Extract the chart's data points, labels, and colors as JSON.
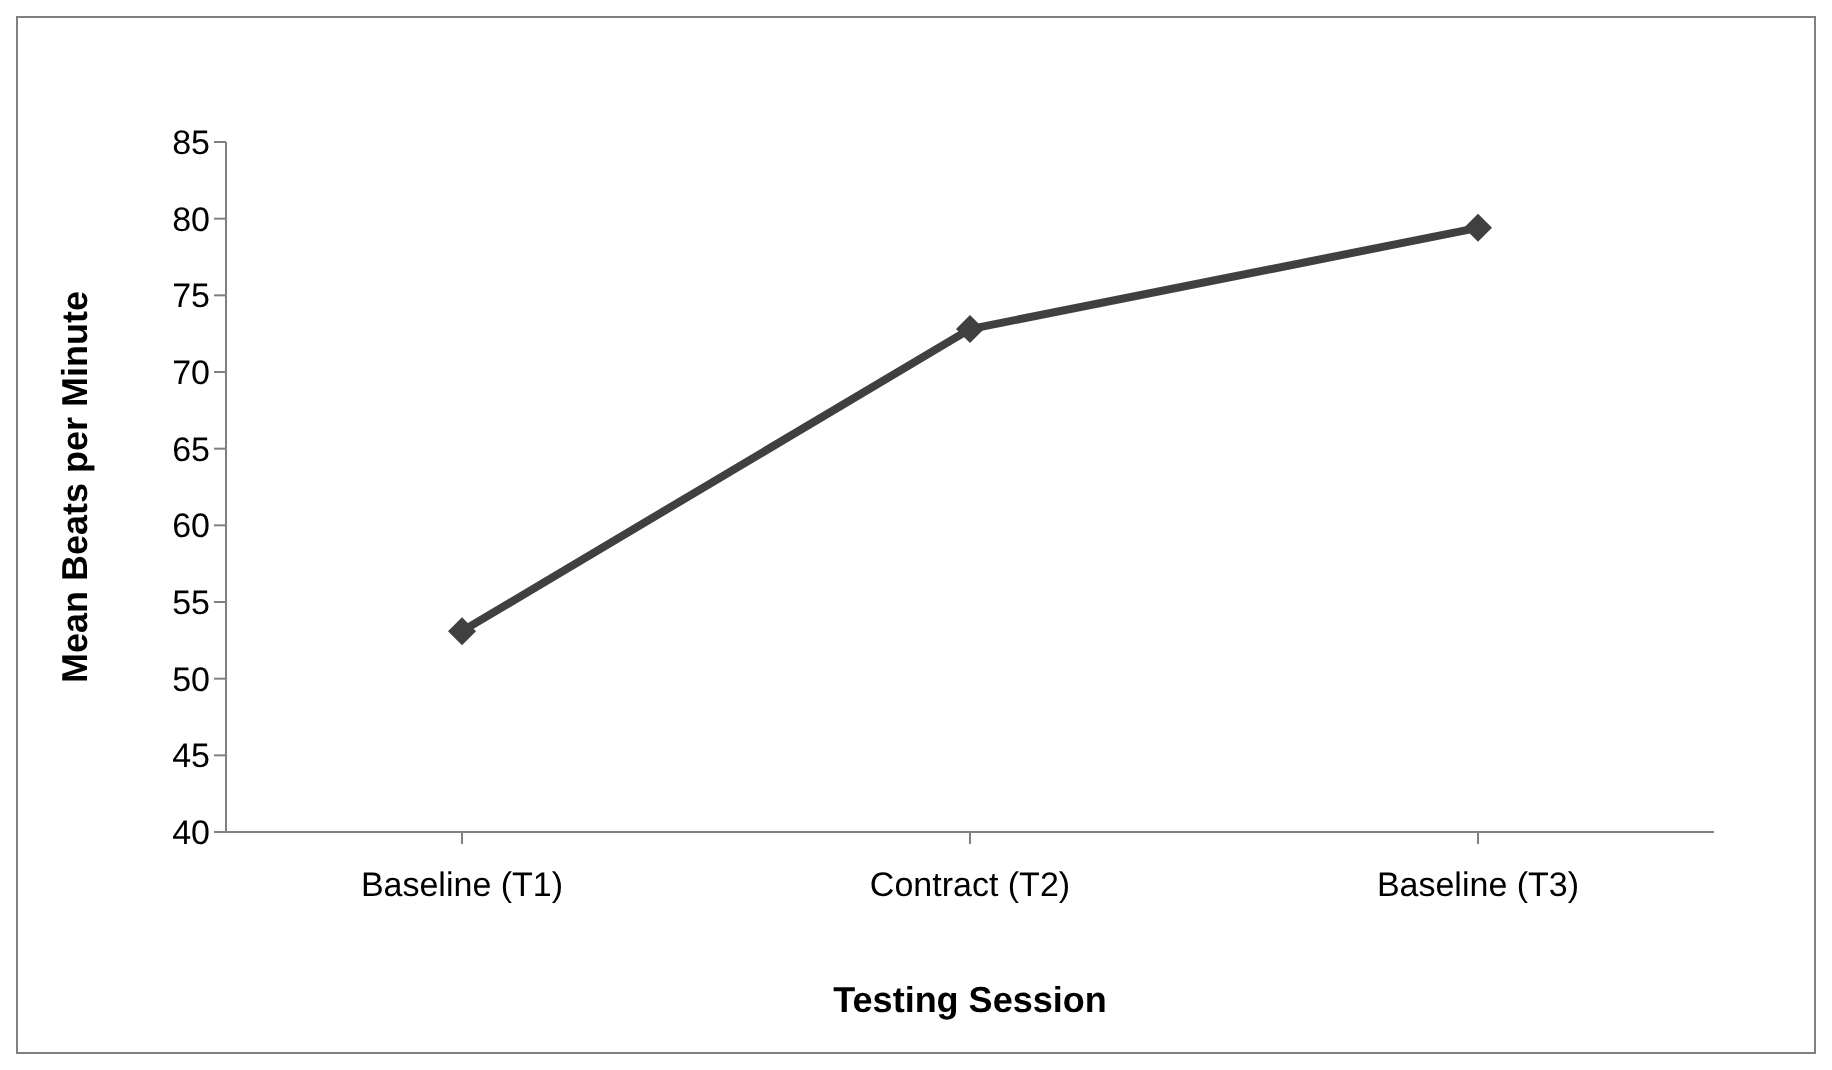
{
  "chart_data": {
    "type": "line",
    "xlabel": "Testing Session",
    "ylabel": "Mean Beats per Minute",
    "categories": [
      "Baseline (T1)",
      "Contract (T2)",
      "Baseline (T3)"
    ],
    "series": [
      {
        "color": "#404040",
        "values": [
          53.1,
          72.8,
          79.4
        ]
      }
    ],
    "ylim": [
      40,
      85
    ],
    "yticks": [
      40,
      45,
      50,
      55,
      60,
      65,
      70,
      75,
      80,
      85
    ],
    "grid": false,
    "legend": false,
    "marker": "diamond",
    "line_style": "solid"
  }
}
